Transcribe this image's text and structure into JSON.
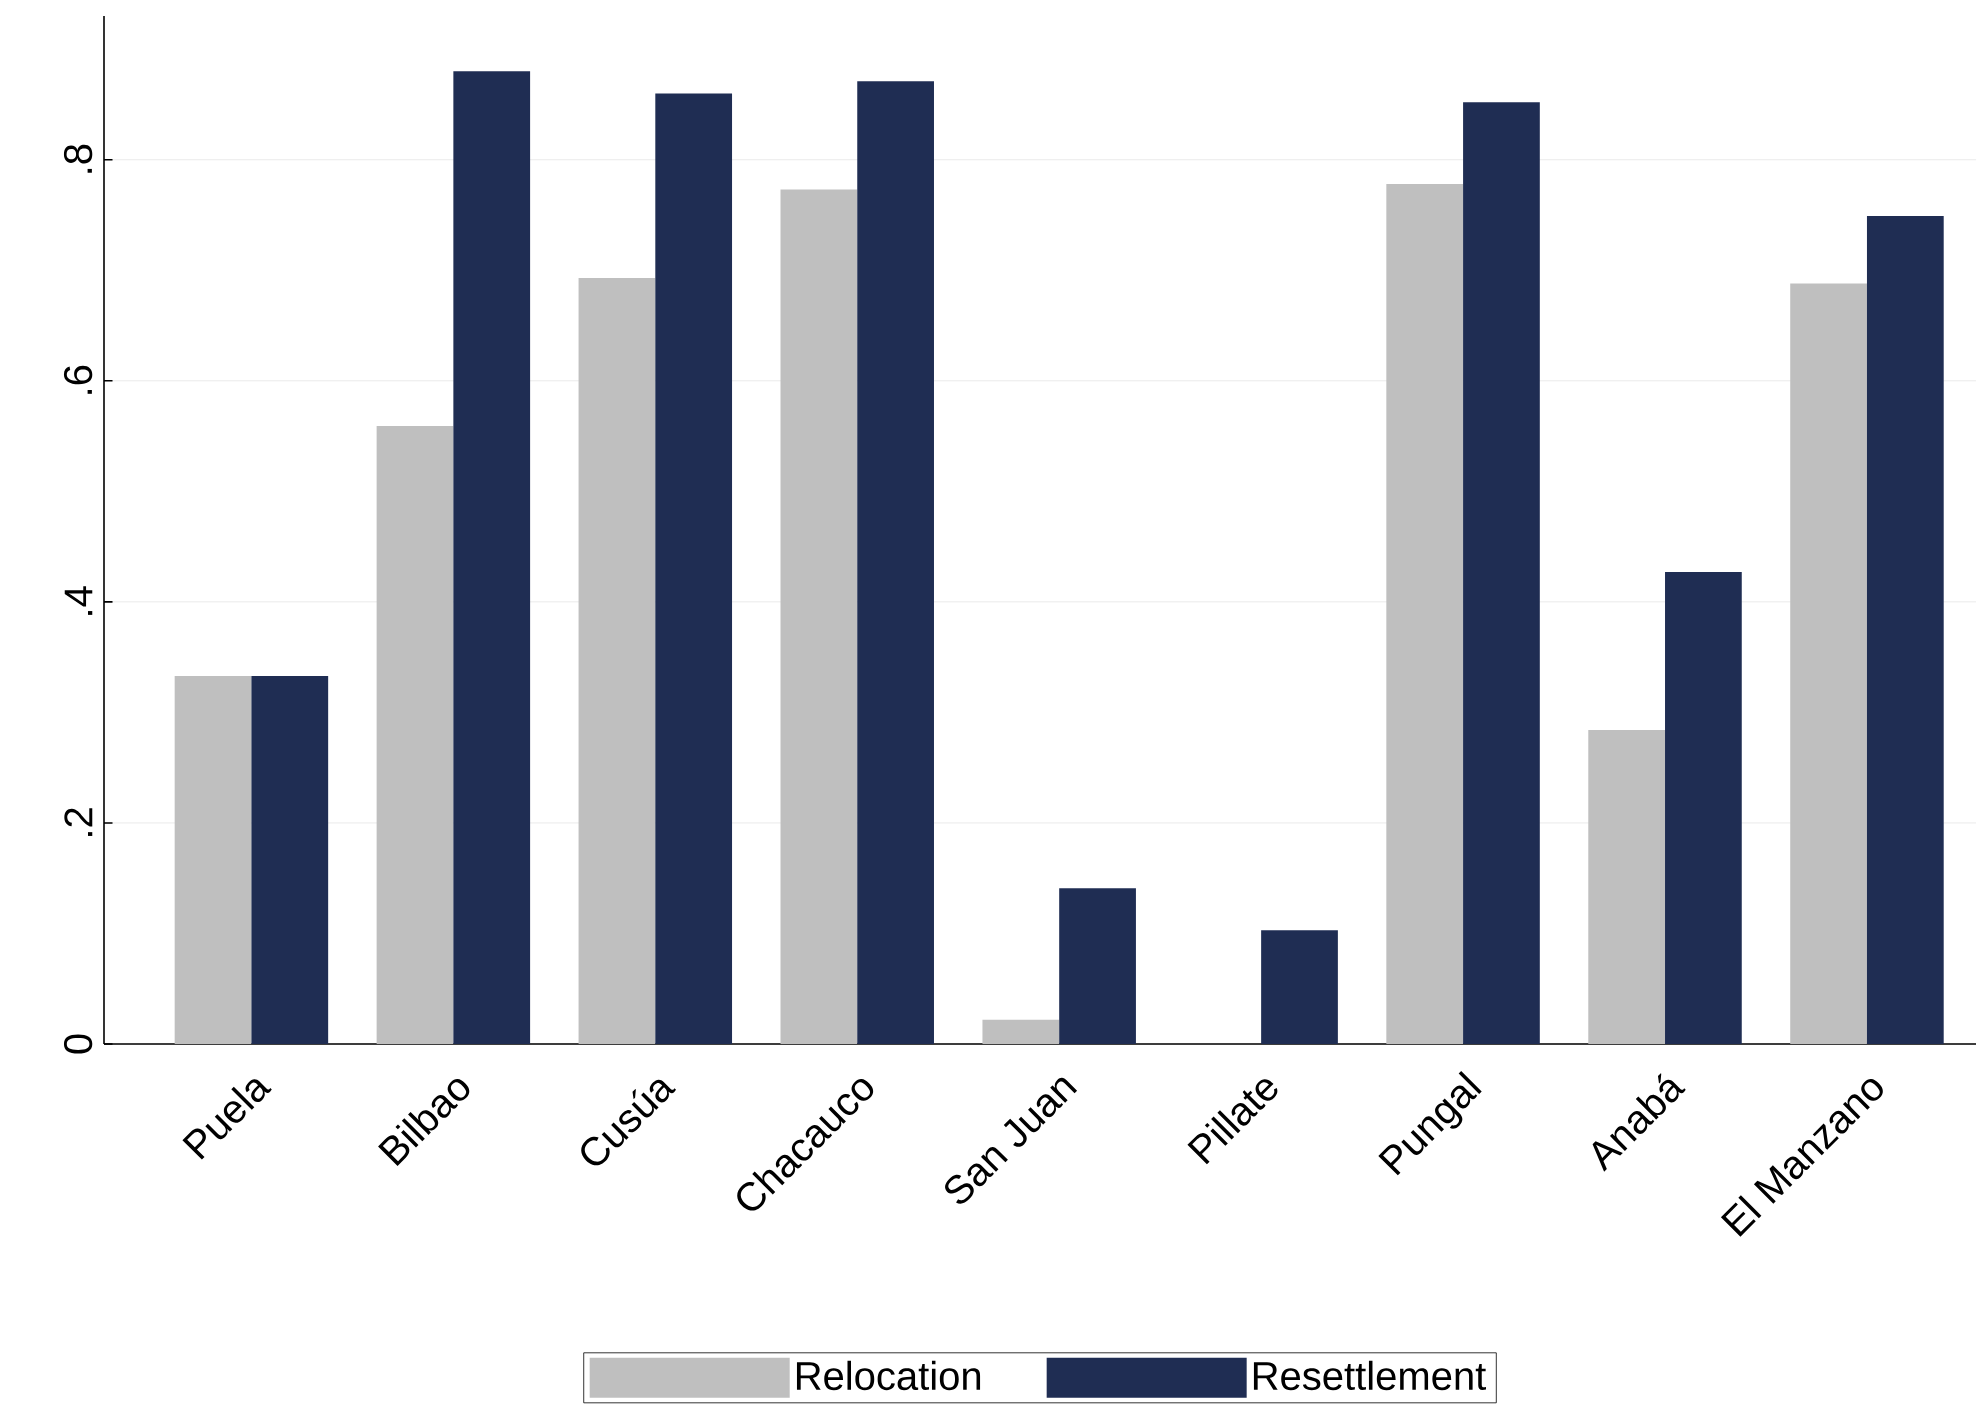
{
  "chart_data": {
    "type": "bar",
    "categories": [
      "Puela",
      "Bilbao",
      "Cusúa",
      "Chacauco",
      "San Juan",
      "Pillate",
      "Pungal",
      "Anabá",
      "El Manzano"
    ],
    "series": [
      {
        "name": "Relocation",
        "color": "#bfbfbf",
        "values": [
          0.333,
          0.559,
          0.693,
          0.773,
          0.022,
          0,
          0.778,
          0.284,
          0.688
        ]
      },
      {
        "name": "Resettlement",
        "color": "#1f2d53",
        "values": [
          0.333,
          0.88,
          0.86,
          0.871,
          0.141,
          0.103,
          0.852,
          0.427,
          0.749
        ]
      }
    ],
    "ylim": [
      0,
      0.93
    ],
    "yticks": [
      0,
      {
        "value": 0.2,
        "label": ".2"
      },
      {
        "value": 0.4,
        "label": ".4"
      },
      {
        "value": 0.6,
        "label": ".6"
      },
      {
        "value": 0.8,
        "label": ".8"
      }
    ],
    "grid": "y",
    "legend": "bottom"
  }
}
